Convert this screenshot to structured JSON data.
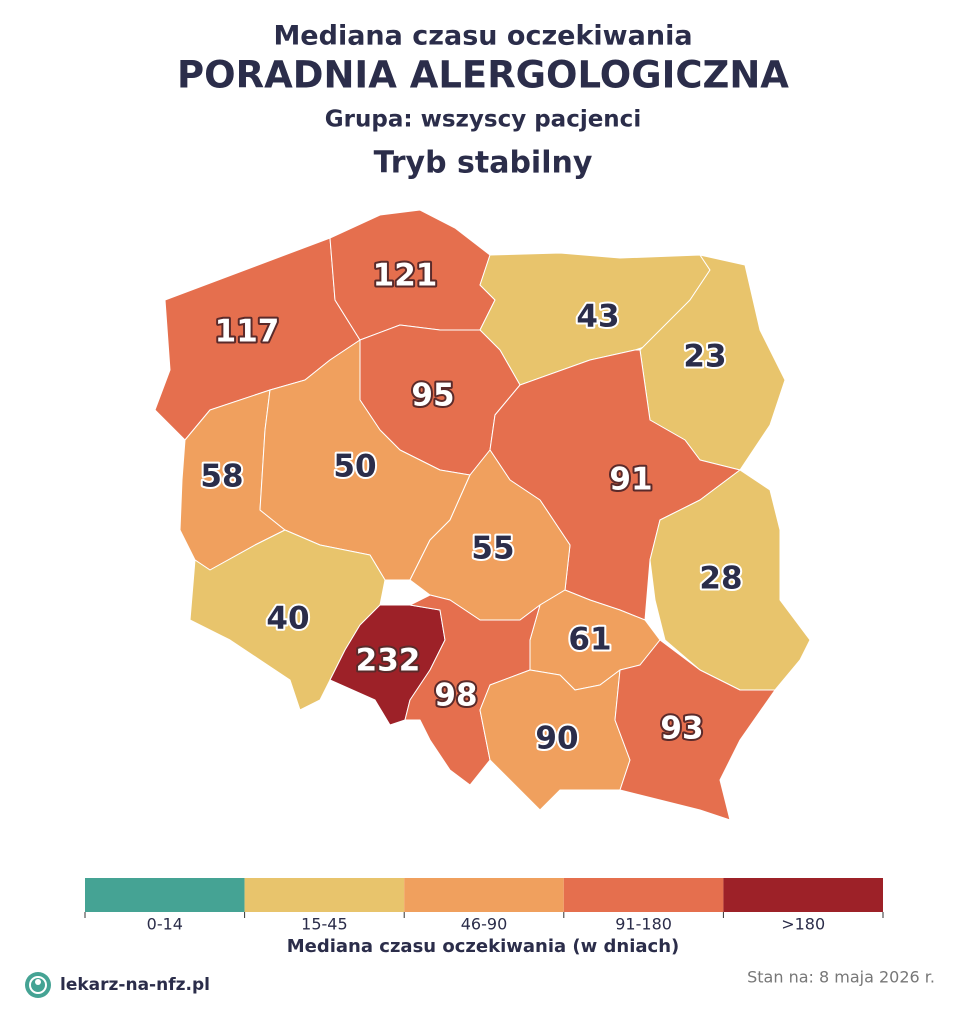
{
  "header": {
    "subtitle": "Mediana czasu oczekiwania",
    "title": "PORADNIA ALERGOLOGICZNA",
    "group": "Grupa: wszyscy pacjenci",
    "mode": "Tryb stabilny"
  },
  "regions": [
    {
      "value": 117,
      "color": "#e56f4e",
      "text_color": "#ffffff"
    },
    {
      "value": 121,
      "color": "#e56f4e",
      "text_color": "#ffffff"
    },
    {
      "value": 43,
      "color": "#e8c46c",
      "text_color": "#2b2d4a"
    },
    {
      "value": 23,
      "color": "#e8c46c",
      "text_color": "#2b2d4a"
    },
    {
      "value": 95,
      "color": "#e56f4e",
      "text_color": "#ffffff"
    },
    {
      "value": 58,
      "color": "#f0a05e",
      "text_color": "#2b2d4a"
    },
    {
      "value": 50,
      "color": "#f0a05e",
      "text_color": "#2b2d4a"
    },
    {
      "value": 91,
      "color": "#e56f4e",
      "text_color": "#ffffff"
    },
    {
      "value": 55,
      "color": "#f0a05e",
      "text_color": "#2b2d4a"
    },
    {
      "value": 28,
      "color": "#e8c46c",
      "text_color": "#2b2d4a"
    },
    {
      "value": 40,
      "color": "#e8c46c",
      "text_color": "#2b2d4a"
    },
    {
      "value": 232,
      "color": "#9d2128",
      "text_color": "#ffffff"
    },
    {
      "value": 61,
      "color": "#f0a05e",
      "text_color": "#2b2d4a"
    },
    {
      "value": 98,
      "color": "#e56f4e",
      "text_color": "#ffffff"
    },
    {
      "value": 90,
      "color": "#f0a05e",
      "text_color": "#2b2d4a"
    },
    {
      "value": 93,
      "color": "#e56f4e",
      "text_color": "#ffffff"
    }
  ],
  "legend": {
    "items": [
      {
        "label": "0-14",
        "color": "#45a394"
      },
      {
        "label": "15-45",
        "color": "#e8c46c"
      },
      {
        "label": "46-90",
        "color": "#f0a05e"
      },
      {
        "label": "91-180",
        "color": "#e56f4e"
      },
      {
        "label": ">180",
        "color": "#9d2128"
      }
    ],
    "title": "Mediana czasu oczekiwania (w dniach)"
  },
  "footer": {
    "site": "lekarz-na-nfz.pl",
    "date": "Stan na: 8 maja 2026 r."
  }
}
